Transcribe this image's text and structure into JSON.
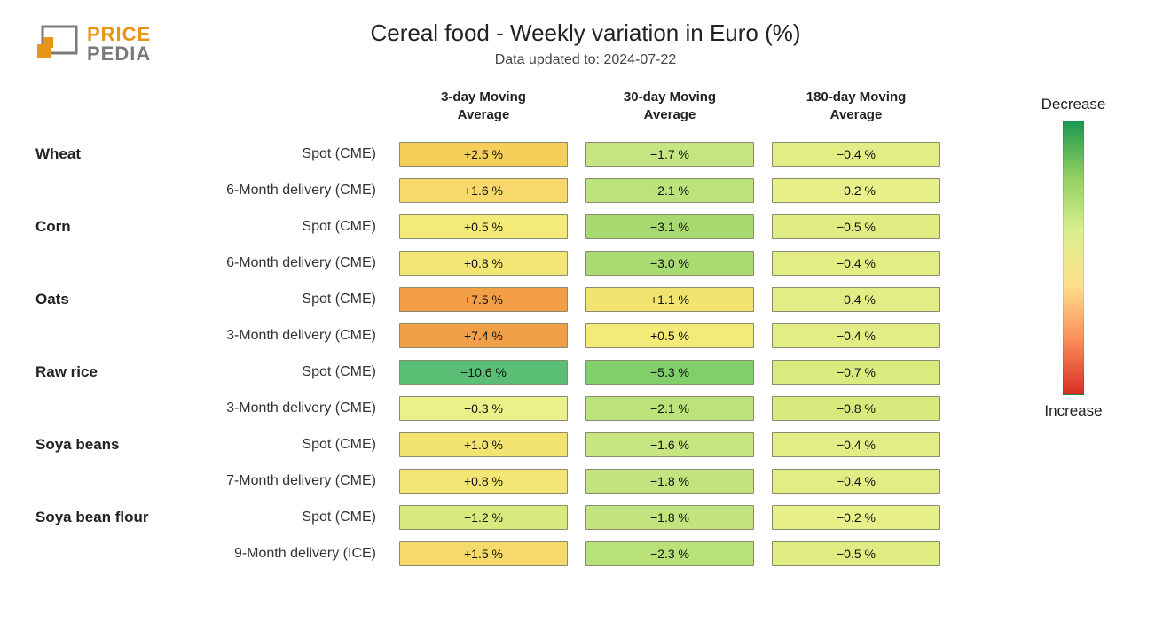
{
  "logo": {
    "top_text": "PRICE",
    "bot_text": "PEDIA",
    "orange": "#e89417",
    "gray": "#7a7a7a"
  },
  "title": "Cereal food - Weekly variation in Euro (%)",
  "subtitle": "Data updated to: 2024-07-22",
  "columns": [
    {
      "label_line1": "3-day Moving",
      "label_line2": "Average"
    },
    {
      "label_line1": "30-day Moving",
      "label_line2": "Average"
    },
    {
      "label_line1": "180-day Moving",
      "label_line2": "Average"
    }
  ],
  "legend": {
    "top_label": "Decrease",
    "bottom_label": "Increase",
    "gradient_stops": [
      "#1a9850",
      "#91cf60",
      "#d9ef8b",
      "#fee08b",
      "#fc8d59",
      "#d73027"
    ]
  },
  "cell_border_color": "#8a8a6f",
  "background_color": "#ffffff",
  "fontsize_title": 26,
  "fontsize_subtitle": 16,
  "fontsize_header": 15,
  "fontsize_category": 17,
  "fontsize_sublabel": 16,
  "fontsize_cell": 14,
  "rows": [
    {
      "category": "Wheat",
      "sublabel": "Spot (CME)",
      "values": [
        "+2.5 %",
        "−1.7 %",
        "−0.4 %"
      ],
      "colors": [
        "#f6cf5b",
        "#c5e580",
        "#e2ee85"
      ]
    },
    {
      "category": "",
      "sublabel": "6-Month delivery (CME)",
      "values": [
        "+1.6 %",
        "−2.1 %",
        "−0.2 %"
      ],
      "colors": [
        "#f6d96a",
        "#bce37b",
        "#e8f08a"
      ]
    },
    {
      "category": "Corn",
      "sublabel": "Spot (CME)",
      "values": [
        "+0.5 %",
        "−3.1 %",
        "−0.5 %"
      ],
      "colors": [
        "#f3ea78",
        "#a6da70",
        "#dfed82"
      ]
    },
    {
      "category": "",
      "sublabel": "6-Month delivery (CME)",
      "values": [
        "+0.8 %",
        "−3.0 %",
        "−0.4 %"
      ],
      "colors": [
        "#f3e674",
        "#a8db71",
        "#e2ee85"
      ]
    },
    {
      "category": "Oats",
      "sublabel": "Spot (CME)",
      "values": [
        "+7.5 %",
        "+1.1 %",
        "−0.4 %"
      ],
      "colors": [
        "#f29f46",
        "#f2e370",
        "#e2ee85"
      ]
    },
    {
      "category": "",
      "sublabel": "3-Month delivery (CME)",
      "values": [
        "+7.4 %",
        "+0.5 %",
        "−0.4 %"
      ],
      "colors": [
        "#f2a048",
        "#f3ea78",
        "#e2ee85"
      ]
    },
    {
      "category": "Raw rice",
      "sublabel": "Spot (CME)",
      "values": [
        "−10.6 %",
        "−5.3 %",
        "−0.7 %"
      ],
      "colors": [
        "#5abf75",
        "#80cf6b",
        "#d9eb7f"
      ]
    },
    {
      "category": "",
      "sublabel": "3-Month delivery (CME)",
      "values": [
        "−0.3 %",
        "−2.1 %",
        "−0.8 %"
      ],
      "colors": [
        "#ebf08b",
        "#bce37b",
        "#d6ea7d"
      ]
    },
    {
      "category": "Soya beans",
      "sublabel": "Spot (CME)",
      "values": [
        "+1.0 %",
        "−1.6 %",
        "−0.4 %"
      ],
      "colors": [
        "#f3e472",
        "#c7e681",
        "#e2ee85"
      ]
    },
    {
      "category": "",
      "sublabel": "7-Month delivery (CME)",
      "values": [
        "+0.8 %",
        "−1.8 %",
        "−0.4 %"
      ],
      "colors": [
        "#f3e674",
        "#c2e47e",
        "#e2ee85"
      ]
    },
    {
      "category": "Soya bean flour",
      "sublabel": "Spot (CME)",
      "values": [
        "−1.2 %",
        "−1.8 %",
        "−0.2 %"
      ],
      "colors": [
        "#d6ea7d",
        "#c2e47e",
        "#e8f08a"
      ]
    },
    {
      "category": "",
      "sublabel": "9-Month delivery (ICE)",
      "values": [
        "+1.5 %",
        "−2.3 %",
        "−0.5 %"
      ],
      "colors": [
        "#f5da6b",
        "#b8e179",
        "#dfed82"
      ]
    }
  ]
}
